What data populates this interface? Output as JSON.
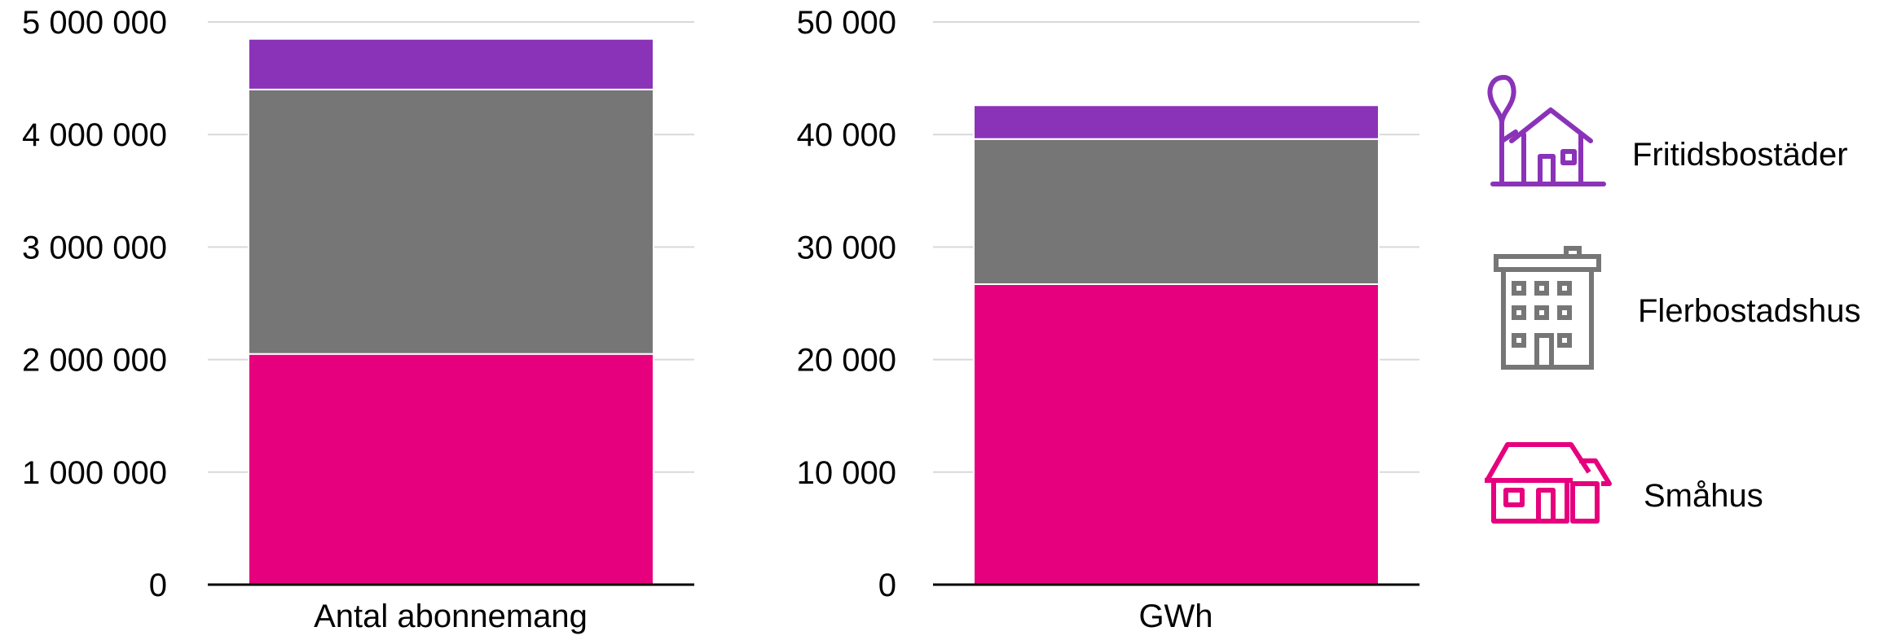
{
  "chart_data": [
    {
      "type": "bar",
      "stacked": true,
      "categories": [
        "Antal abonnemang"
      ],
      "ylim": [
        0,
        5000000
      ],
      "yticks": [
        0,
        1000000,
        2000000,
        3000000,
        4000000,
        5000000
      ],
      "ytick_labels": [
        "0",
        "1 000 000",
        "2 000 000",
        "3 000 000",
        "4 000 000",
        "5 000 000"
      ],
      "grid": true,
      "series": [
        {
          "name": "Småhus",
          "values": [
            2050000
          ],
          "color": "#E6007E"
        },
        {
          "name": "Flerbostadshus",
          "values": [
            2350000
          ],
          "color": "#767676"
        },
        {
          "name": "Fritidsbostäder",
          "values": [
            450000
          ],
          "color": "#8A33B8"
        }
      ]
    },
    {
      "type": "bar",
      "stacked": true,
      "categories": [
        "GWh"
      ],
      "ylim": [
        0,
        50000
      ],
      "yticks": [
        0,
        10000,
        20000,
        30000,
        40000,
        50000
      ],
      "ytick_labels": [
        "0",
        "10 000",
        "20 000",
        "30 000",
        "40 000",
        "50 000"
      ],
      "grid": true,
      "series": [
        {
          "name": "Småhus",
          "values": [
            26700
          ],
          "color": "#E6007E"
        },
        {
          "name": "Flerbostadshus",
          "values": [
            12900
          ],
          "color": "#767676"
        },
        {
          "name": "Fritidsbostäder",
          "values": [
            3000
          ],
          "color": "#8A33B8"
        }
      ]
    }
  ],
  "legend": {
    "placement": "right",
    "items": [
      {
        "label": "Fritidsbostäder",
        "icon": "holiday-house-icon",
        "color": "#8A33B8"
      },
      {
        "label": "Flerbostadshus",
        "icon": "apartment-building-icon",
        "color": "#767676"
      },
      {
        "label": "Småhus",
        "icon": "house-icon",
        "color": "#E6007E"
      }
    ]
  },
  "colors": {
    "gridline": "#D9D9D9",
    "axis": "#000000"
  }
}
